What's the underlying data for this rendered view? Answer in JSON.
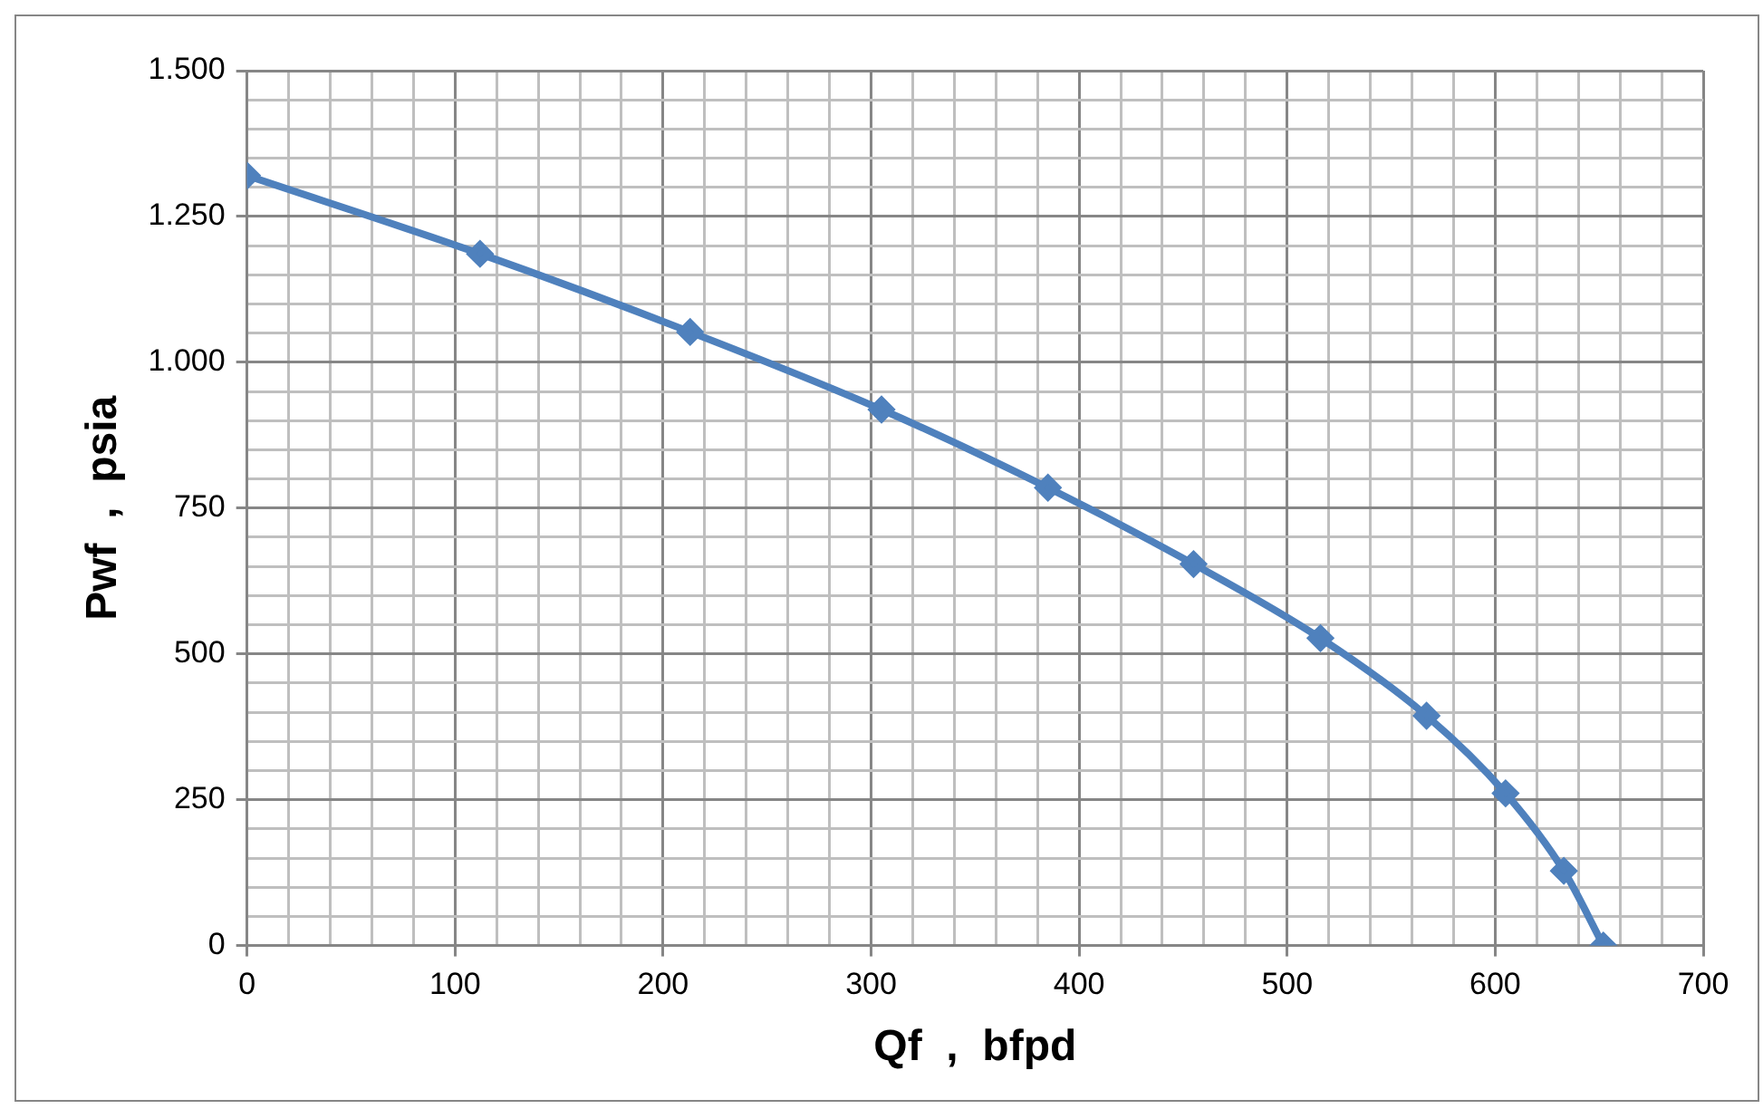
{
  "chart_data": {
    "type": "line",
    "xlabel": "Qf  ,  bfpd",
    "ylabel": "Pwf  ,  psia",
    "x": [
      0,
      112,
      213,
      305,
      385,
      455,
      516,
      567,
      605,
      633,
      652
    ],
    "series": [
      {
        "color": "#4f81bd",
        "values": [
          1320,
          1186,
          1052,
          919,
          785,
          654,
          527,
          394,
          261,
          128,
          0
        ]
      }
    ],
    "xlim": [
      0,
      700
    ],
    "xticks": [
      0,
      {
        "value": 20,
        "label": null
      },
      {
        "value": 40,
        "label": null
      },
      {
        "value": 60,
        "label": null
      },
      {
        "value": 80,
        "label": null
      },
      100,
      {
        "value": 120,
        "label": null
      },
      {
        "value": 140,
        "label": null
      },
      {
        "value": 160,
        "label": null
      },
      {
        "value": 180,
        "label": null
      },
      200,
      {
        "value": 220,
        "label": null
      },
      {
        "value": 240,
        "label": null
      },
      {
        "value": 260,
        "label": null
      },
      {
        "value": 280,
        "label": null
      },
      300,
      {
        "value": 320,
        "label": null
      },
      {
        "value": 340,
        "label": null
      },
      {
        "value": 360,
        "label": null
      },
      {
        "value": 380,
        "label": null
      },
      400,
      {
        "value": 420,
        "label": null
      },
      {
        "value": 440,
        "label": null
      },
      {
        "value": 460,
        "label": null
      },
      {
        "value": 480,
        "label": null
      },
      500,
      {
        "value": 520,
        "label": null
      },
      {
        "value": 540,
        "label": null
      },
      {
        "value": 560,
        "label": null
      },
      {
        "value": 580,
        "label": null
      },
      600,
      {
        "value": 620,
        "label": null
      },
      {
        "value": 640,
        "label": null
      },
      {
        "value": 660,
        "label": null
      },
      {
        "value": 680,
        "label": null
      },
      700
    ],
    "ylim": [
      0,
      1500
    ],
    "yticks": [
      0,
      {
        "value": 50,
        "label": null
      },
      {
        "value": 100,
        "label": null
      },
      {
        "value": 150,
        "label": null
      },
      {
        "value": 200,
        "label": null
      },
      250,
      {
        "value": 300,
        "label": null
      },
      {
        "value": 350,
        "label": null
      },
      {
        "value": 400,
        "label": null
      },
      {
        "value": 450,
        "label": null
      },
      500,
      {
        "value": 550,
        "label": null
      },
      {
        "value": 600,
        "label": null
      },
      {
        "value": 650,
        "label": null
      },
      {
        "value": 700,
        "label": null
      },
      750,
      {
        "value": 800,
        "label": null
      },
      {
        "value": 850,
        "label": null
      },
      {
        "value": 900,
        "label": null
      },
      {
        "value": 950,
        "label": null
      },
      {
        "value": 1000,
        "label": "1.000"
      },
      {
        "value": 1050,
        "label": null
      },
      {
        "value": 1100,
        "label": null
      },
      {
        "value": 1150,
        "label": null
      },
      {
        "value": 1200,
        "label": null
      },
      {
        "value": 1250,
        "label": "1.250"
      },
      {
        "value": 1300,
        "label": null
      },
      {
        "value": 1350,
        "label": null
      },
      {
        "value": 1400,
        "label": null
      },
      {
        "value": 1450,
        "label": null
      },
      {
        "value": 1500,
        "label": "1.500"
      }
    ],
    "grid": true,
    "marker": "diamond",
    "line_style": "solid",
    "legend": false
  }
}
